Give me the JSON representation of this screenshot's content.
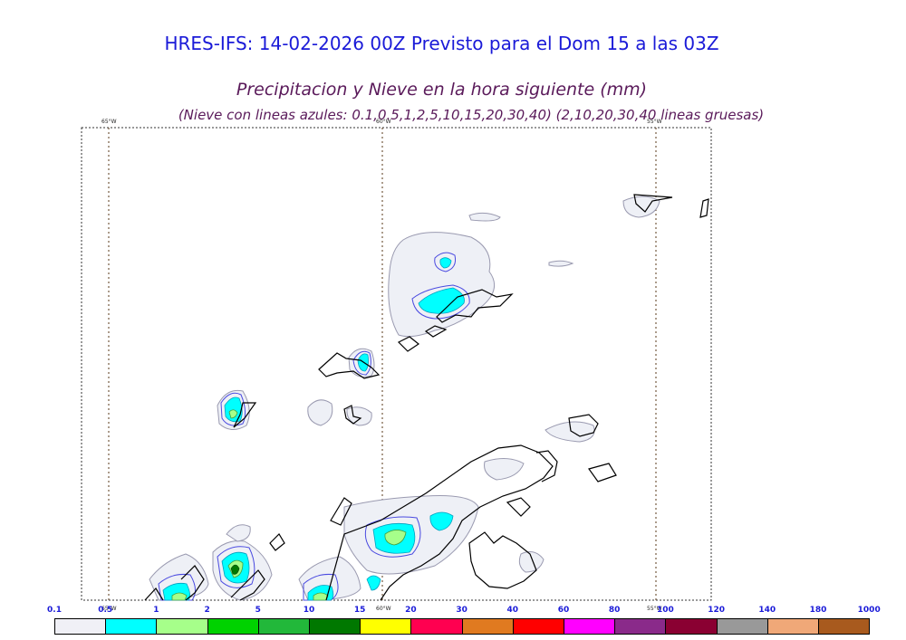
{
  "title": "HRES-IFS: 14-02-2026 00Z Previsto para el Dom 15 a las 03Z",
  "subtitle": "Precipitacion y Nieve en la hora siguiente (mm)",
  "subtitle2": "(Nieve con lineas azules: 0.1,0.5,1,2,5,10,15,20,30,40)  (2,10,20,30,40 lineas gruesas)",
  "meridians": {
    "top": [
      "65°W",
      "60°W",
      "55°W"
    ],
    "bottom": [
      "65°W",
      "60°W",
      "55°W"
    ]
  },
  "colorbar": {
    "levels": [
      "0.1",
      "0.5",
      "1",
      "2",
      "5",
      "10",
      "15",
      "20",
      "30",
      "40",
      "60",
      "80",
      "100",
      "120",
      "140",
      "180",
      "1000"
    ],
    "colors": [
      "#f0f0f6",
      "#00ffff",
      "#a6ff8a",
      "#00d200",
      "#22b83a",
      "#007800",
      "#ffff00",
      "#ff0050",
      "#e07a20",
      "#ff0000",
      "#ff00ff",
      "#8a2a8a",
      "#8a0032",
      "#999999",
      "#f0a878",
      "#a85a1e",
      "#111111"
    ]
  }
}
